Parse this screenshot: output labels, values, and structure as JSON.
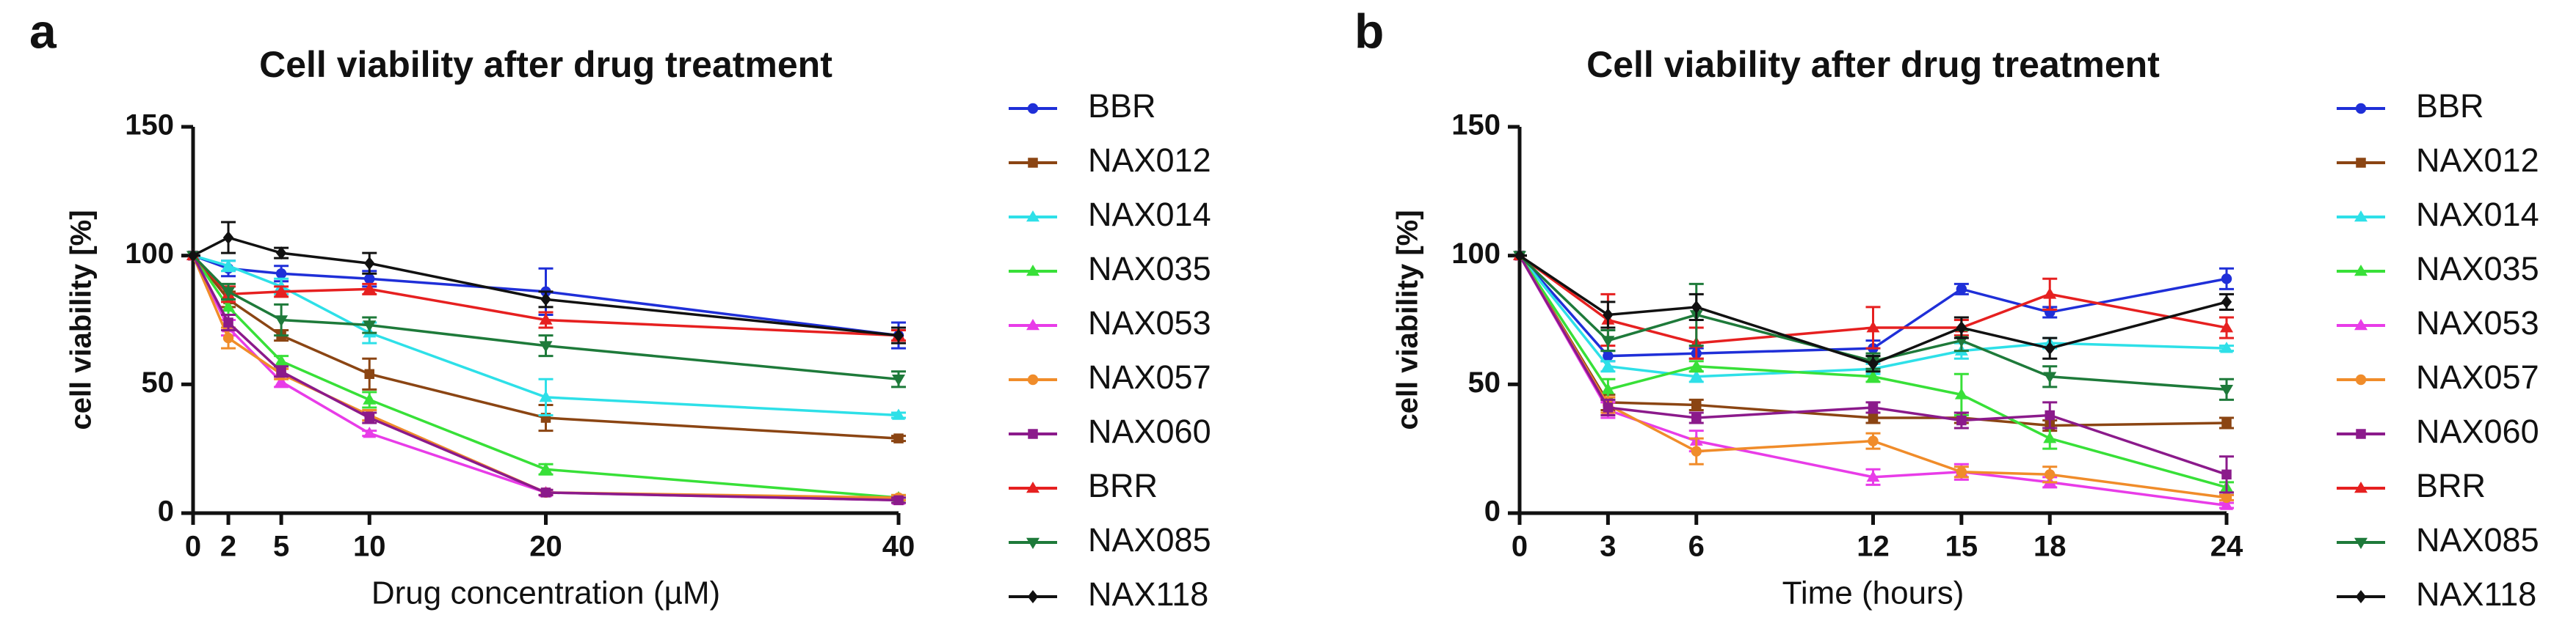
{
  "chart_data": [
    {
      "type": "line",
      "panel_label": "a",
      "title": "Cell viability after drug treatment",
      "x_label": "Drug concentration (µM)",
      "y_label": "cell viability [%]",
      "x": [
        0,
        2,
        5,
        10,
        20,
        40
      ],
      "xlim": [
        0,
        40
      ],
      "xticks": [
        0,
        2,
        5,
        10,
        20,
        40
      ],
      "ylim": [
        0,
        150
      ],
      "yticks": [
        0,
        50,
        100,
        150
      ],
      "legend": "right",
      "series": [
        {
          "name": "BBR",
          "color": "#1f2fd8",
          "marker": "circle",
          "values": [
            100,
            95,
            93,
            91,
            86,
            69
          ],
          "errors": [
            0,
            3,
            3,
            3,
            9,
            5
          ]
        },
        {
          "name": "NAX012",
          "color": "#8b4513",
          "marker": "square",
          "values": [
            100,
            83,
            69,
            54,
            37,
            29
          ],
          "errors": [
            0,
            3,
            2,
            6,
            5,
            1
          ]
        },
        {
          "name": "NAX014",
          "color": "#2ee0e8",
          "marker": "triangle",
          "values": [
            100,
            96,
            88,
            70,
            45,
            38
          ],
          "errors": [
            0,
            2,
            3,
            4,
            7,
            1
          ]
        },
        {
          "name": "NAX035",
          "color": "#38e038",
          "marker": "triangle",
          "values": [
            100,
            80,
            59,
            44,
            17,
            6
          ],
          "errors": [
            0,
            3,
            2,
            3,
            2,
            1
          ]
        },
        {
          "name": "NAX053",
          "color": "#e83ce8",
          "marker": "triangle",
          "values": [
            100,
            72,
            51,
            31,
            8,
            5
          ],
          "errors": [
            0,
            3,
            2,
            1,
            1,
            1
          ]
        },
        {
          "name": "NAX057",
          "color": "#f08c2a",
          "marker": "circle",
          "values": [
            100,
            68,
            54,
            38,
            8,
            6
          ],
          "errors": [
            0,
            4,
            2,
            2,
            1,
            1
          ]
        },
        {
          "name": "NAX060",
          "color": "#8b1a8b",
          "marker": "square",
          "values": [
            100,
            74,
            55,
            37,
            8,
            5
          ],
          "errors": [
            0,
            3,
            2,
            2,
            1,
            1
          ]
        },
        {
          "name": "BRR",
          "color": "#e62020",
          "marker": "triangle",
          "values": [
            100,
            85,
            86,
            87,
            75,
            69
          ],
          "errors": [
            0,
            3,
            2,
            2,
            3,
            2
          ]
        },
        {
          "name": "NAX085",
          "color": "#1e7a3a",
          "marker": "triangle-down",
          "values": [
            100,
            86,
            75,
            73,
            65,
            52
          ],
          "errors": [
            0,
            3,
            6,
            3,
            4,
            3
          ]
        },
        {
          "name": "NAX118",
          "color": "#111111",
          "marker": "diamond",
          "values": [
            100,
            107,
            101,
            97,
            83,
            69
          ],
          "errors": [
            0,
            6,
            2,
            4,
            3,
            3
          ]
        }
      ]
    },
    {
      "type": "line",
      "panel_label": "b",
      "title": "Cell viability after drug treatment",
      "x_label": "Time (hours)",
      "y_label": "cell viability [%]",
      "x": [
        0,
        3,
        6,
        12,
        15,
        18,
        24
      ],
      "xlim": [
        0,
        24
      ],
      "xticks": [
        0,
        3,
        6,
        12,
        15,
        18,
        24
      ],
      "ylim": [
        0,
        150
      ],
      "yticks": [
        0,
        50,
        100,
        150
      ],
      "legend": "right",
      "series": [
        {
          "name": "BBR",
          "color": "#1f2fd8",
          "marker": "circle",
          "values": [
            100,
            61,
            62,
            64,
            87,
            78,
            91
          ],
          "errors": [
            0,
            2,
            2,
            3,
            2,
            2,
            4
          ]
        },
        {
          "name": "NAX012",
          "color": "#8b4513",
          "marker": "square",
          "values": [
            100,
            43,
            42,
            37,
            37,
            34,
            35
          ],
          "errors": [
            0,
            3,
            2,
            2,
            2,
            2,
            2
          ]
        },
        {
          "name": "NAX014",
          "color": "#2ee0e8",
          "marker": "triangle",
          "values": [
            100,
            57,
            53,
            56,
            63,
            66,
            64
          ],
          "errors": [
            0,
            2,
            2,
            2,
            3,
            2,
            1
          ]
        },
        {
          "name": "NAX035",
          "color": "#38e038",
          "marker": "triangle",
          "values": [
            100,
            48,
            57,
            53,
            46,
            29,
            10
          ],
          "errors": [
            0,
            4,
            2,
            2,
            8,
            4,
            2
          ]
        },
        {
          "name": "NAX053",
          "color": "#e83ce8",
          "marker": "triangle",
          "values": [
            100,
            40,
            28,
            14,
            16,
            12,
            3
          ],
          "errors": [
            0,
            3,
            4,
            3,
            3,
            2,
            1
          ]
        },
        {
          "name": "NAX057",
          "color": "#f08c2a",
          "marker": "circle",
          "values": [
            100,
            42,
            24,
            28,
            16,
            15,
            6
          ],
          "errors": [
            0,
            3,
            5,
            3,
            2,
            3,
            1
          ]
        },
        {
          "name": "NAX060",
          "color": "#8b1a8b",
          "marker": "square",
          "values": [
            100,
            41,
            37,
            41,
            36,
            38,
            15
          ],
          "errors": [
            0,
            3,
            2,
            2,
            3,
            5,
            7
          ]
        },
        {
          "name": "BRR",
          "color": "#e62020",
          "marker": "triangle",
          "values": [
            100,
            75,
            66,
            72,
            72,
            85,
            72
          ],
          "errors": [
            0,
            10,
            6,
            8,
            3,
            6,
            4
          ]
        },
        {
          "name": "NAX085",
          "color": "#1e7a3a",
          "marker": "triangle-down",
          "values": [
            100,
            67,
            77,
            59,
            67,
            53,
            48
          ],
          "errors": [
            0,
            4,
            12,
            3,
            4,
            4,
            4
          ]
        },
        {
          "name": "NAX118",
          "color": "#111111",
          "marker": "diamond",
          "values": [
            100,
            77,
            80,
            58,
            72,
            64,
            82
          ],
          "errors": [
            0,
            5,
            5,
            3,
            4,
            4,
            3
          ]
        }
      ]
    }
  ]
}
